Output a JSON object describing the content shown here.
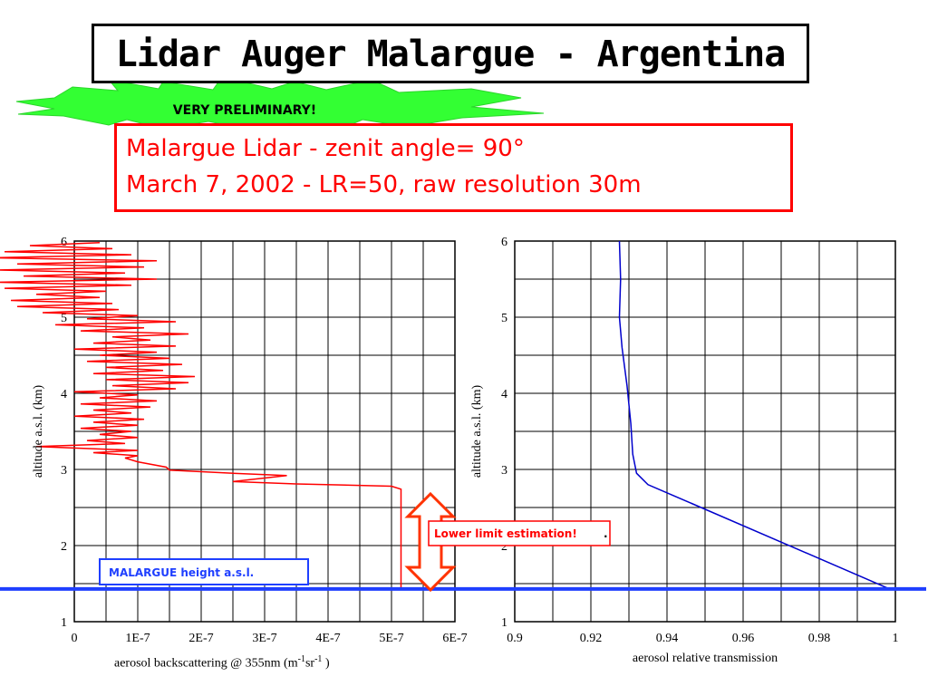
{
  "title": "Lidar Auger Malargue - Argentina",
  "badge": "VERY PRELIMINARY!",
  "subtitle": {
    "line1": "Malargue Lidar - zenit angle= 90°",
    "line2": "March 7, 2002 - LR=50, raw resolution 30m"
  },
  "annotations": {
    "lower_limit": "Lower limit estimation!",
    "lower_limit_suffix": ".",
    "malargue_height": "MALARGUE height a.s.l."
  },
  "colors": {
    "backscatter_line": "#ff0000",
    "transmission_line": "#0000cc",
    "height_line": "#1f3fff",
    "badge_fill": "#33ff33",
    "arrow": "#ff3300"
  },
  "chart_data": [
    {
      "type": "line",
      "xlabel_parts": [
        "aerosol backscattering @ 355nm (m",
        "-1",
        "sr",
        "-1",
        " )"
      ],
      "ylabel": "altitude a.s.l. (km)",
      "xlim": [
        0,
        6e-07
      ],
      "ylim": [
        1,
        6
      ],
      "xticks": [
        0,
        1e-07,
        2e-07,
        3e-07,
        4e-07,
        5e-07,
        6e-07
      ],
      "xtick_labels": [
        "0",
        "1E-7",
        "2E-7",
        "3E-7",
        "4E-7",
        "5E-7",
        "6E-7"
      ],
      "yticks": [
        1,
        2,
        3,
        4,
        5,
        6
      ],
      "ytick_labels": [
        "1",
        "2",
        "3",
        "4",
        "5",
        "6"
      ],
      "grid": true,
      "reference_line_y": 1.43,
      "series": [
        {
          "points": [
            [
              5.15e-07,
              1.43
            ],
            [
              5.15e-07,
              2.74
            ],
            [
              5e-07,
              2.78
            ],
            [
              3.5e-07,
              2.81
            ],
            [
              2.5e-07,
              2.84
            ],
            [
              3.35e-07,
              2.92
            ],
            [
              2.5e-07,
              2.95
            ],
            [
              1.5e-07,
              2.99
            ],
            [
              1.45e-07,
              3.03
            ],
            [
              1e-07,
              3.1
            ],
            [
              8e-08,
              3.15
            ],
            [
              1e-07,
              3.18
            ],
            [
              3e-08,
              3.22
            ],
            [
              1e-07,
              3.25
            ],
            [
              -6e-08,
              3.3
            ],
            [
              8e-08,
              3.34
            ],
            [
              2e-08,
              3.38
            ],
            [
              1e-07,
              3.42
            ],
            [
              4e-08,
              3.46
            ],
            [
              9e-08,
              3.5
            ],
            [
              1e-08,
              3.54
            ],
            [
              1e-07,
              3.58
            ],
            [
              3e-08,
              3.62
            ],
            [
              1.1e-07,
              3.66
            ],
            [
              0.0,
              3.7
            ],
            [
              9e-08,
              3.74
            ],
            [
              3e-08,
              3.78
            ],
            [
              1.2e-07,
              3.82
            ],
            [
              1e-08,
              3.86
            ],
            [
              1.3e-07,
              3.9
            ],
            [
              4e-08,
              3.94
            ],
            [
              1e-07,
              3.98
            ],
            [
              0.0,
              4.02
            ],
            [
              1.6e-07,
              4.06
            ],
            [
              6e-08,
              4.1
            ],
            [
              1.8e-07,
              4.14
            ],
            [
              5e-08,
              4.18
            ],
            [
              1.9e-07,
              4.22
            ],
            [
              3e-08,
              4.26
            ],
            [
              1.4e-07,
              4.3
            ],
            [
              5e-08,
              4.34
            ],
            [
              1.7e-07,
              4.38
            ],
            [
              2e-08,
              4.42
            ],
            [
              1.5e-07,
              4.46
            ],
            [
              4e-08,
              4.5
            ],
            [
              1.3e-07,
              4.54
            ],
            [
              0.0,
              4.58
            ],
            [
              1.6e-07,
              4.62
            ],
            [
              3e-08,
              4.66
            ],
            [
              1.2e-07,
              4.7
            ],
            [
              6e-08,
              4.74
            ],
            [
              1.8e-07,
              4.78
            ],
            [
              1e-08,
              4.82
            ],
            [
              1.1e-07,
              4.86
            ],
            [
              -3e-08,
              4.9
            ],
            [
              1.6e-07,
              4.94
            ],
            [
              2e-08,
              4.98
            ],
            [
              1e-07,
              5.02
            ],
            [
              -5e-08,
              5.06
            ],
            [
              7e-08,
              5.1
            ],
            [
              -9e-08,
              5.14
            ],
            [
              6e-08,
              5.18
            ],
            [
              -1e-07,
              5.22
            ],
            [
              4e-08,
              5.26
            ],
            [
              -6e-08,
              5.3
            ],
            [
              5e-08,
              5.34
            ],
            [
              -1.1e-07,
              5.38
            ],
            [
              9e-08,
              5.42
            ],
            [
              -1.2e-07,
              5.46
            ],
            [
              1.3e-07,
              5.5
            ],
            [
              -8e-08,
              5.54
            ],
            [
              8e-08,
              5.58
            ],
            [
              -1.2e-07,
              5.62
            ],
            [
              1.1e-07,
              5.66
            ],
            [
              -9e-08,
              5.7
            ],
            [
              1.3e-07,
              5.74
            ],
            [
              -1.3e-07,
              5.78
            ],
            [
              9e-08,
              5.82
            ],
            [
              -1.1e-07,
              5.86
            ],
            [
              6e-08,
              5.9
            ],
            [
              -7e-08,
              5.94
            ],
            [
              4e-08,
              5.98
            ]
          ]
        }
      ]
    },
    {
      "type": "line",
      "xlabel": "aerosol relative transmission",
      "ylabel": "altitude a.s.l. (km)",
      "xlim": [
        0.9,
        1.0
      ],
      "ylim": [
        1,
        6
      ],
      "xticks": [
        0.9,
        0.92,
        0.94,
        0.96,
        0.98,
        1.0
      ],
      "xtick_labels": [
        "0.9",
        "0.92",
        "0.94",
        "0.96",
        "0.98",
        "1"
      ],
      "yticks": [
        1,
        2,
        3,
        4,
        5,
        6
      ],
      "ytick_labels": [
        "1",
        "2",
        "3",
        "4",
        "5",
        "6"
      ],
      "grid": true,
      "reference_line_y": 1.43,
      "series": [
        {
          "points": [
            [
              0.9985,
              1.43
            ],
            [
              0.942,
              2.65
            ],
            [
              0.935,
              2.8
            ],
            [
              0.932,
              2.95
            ],
            [
              0.931,
              3.2
            ],
            [
              0.9305,
              3.6
            ],
            [
              0.9295,
              4.1
            ],
            [
              0.9282,
              4.6
            ],
            [
              0.9275,
              5.0
            ],
            [
              0.9278,
              5.5
            ],
            [
              0.9275,
              6.0
            ]
          ]
        }
      ]
    }
  ]
}
